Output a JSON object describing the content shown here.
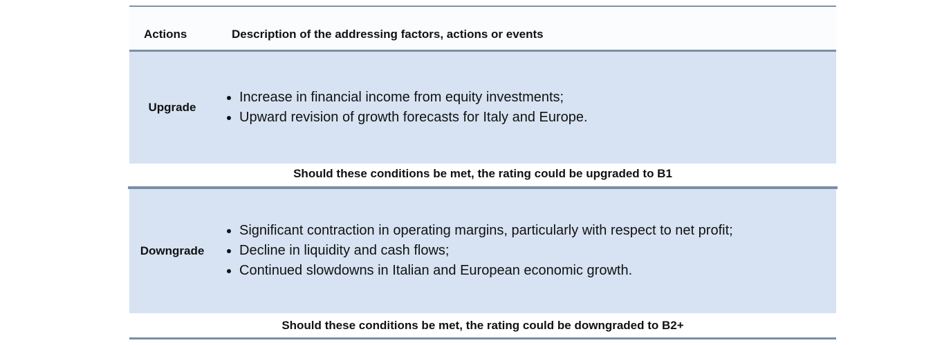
{
  "header": {
    "actions_label": "Actions",
    "description_label": "Description of the addressing factors, actions or events"
  },
  "upgrade": {
    "label": "Upgrade",
    "items": [
      "Increase in financial income from equity investments;",
      "Upward revision of growth forecasts for Italy and Europe."
    ],
    "note": "Should these conditions be met, the rating could be upgraded to B1"
  },
  "downgrade": {
    "label": "Downgrade",
    "items": [
      "Significant contraction in operating margins,  particularly with respect to net profit;",
      "Decline in liquidity and cash flows;",
      "Continued slowdowns in Italian and European economic growth."
    ],
    "note": "Should these conditions be met, the rating could be downgraded to B2+"
  },
  "colors": {
    "band_fill": "#d7e3f2",
    "rule": "#7a8ea6"
  }
}
